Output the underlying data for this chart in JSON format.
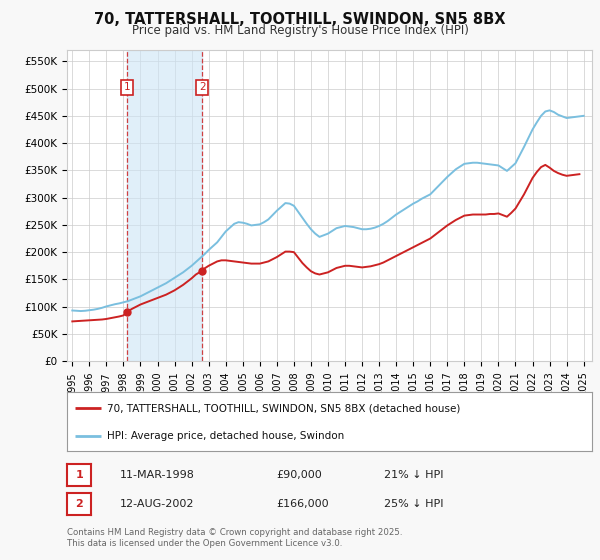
{
  "title": "70, TATTERSHALL, TOOTHILL, SWINDON, SN5 8BX",
  "subtitle": "Price paid vs. HM Land Registry's House Price Index (HPI)",
  "ylabel_ticks": [
    "£0",
    "£50K",
    "£100K",
    "£150K",
    "£200K",
    "£250K",
    "£300K",
    "£350K",
    "£400K",
    "£450K",
    "£500K",
    "£550K"
  ],
  "ytick_values": [
    0,
    50000,
    100000,
    150000,
    200000,
    250000,
    300000,
    350000,
    400000,
    450000,
    500000,
    550000
  ],
  "ylim": [
    0,
    570000
  ],
  "xlim_start": 1994.7,
  "xlim_end": 2025.5,
  "hpi_color": "#7abfdf",
  "price_color": "#cc2222",
  "background_color": "#f8f8f8",
  "plot_bg_color": "#ffffff",
  "grid_color": "#cccccc",
  "sale1_x": 1998.19,
  "sale1_y": 90000,
  "sale2_x": 2002.62,
  "sale2_y": 166000,
  "shade_x1": 1998.19,
  "shade_x2": 2002.62,
  "legend_label_price": "70, TATTERSHALL, TOOTHILL, SWINDON, SN5 8BX (detached house)",
  "legend_label_hpi": "HPI: Average price, detached house, Swindon",
  "table_row1": [
    "1",
    "11-MAR-1998",
    "£90,000",
    "21% ↓ HPI"
  ],
  "table_row2": [
    "2",
    "12-AUG-2002",
    "£166,000",
    "25% ↓ HPI"
  ],
  "footnote": "Contains HM Land Registry data © Crown copyright and database right 2025.\nThis data is licensed under the Open Government Licence v3.0.",
  "hpi_x": [
    1995.0,
    1995.25,
    1995.5,
    1995.75,
    1996.0,
    1996.25,
    1996.5,
    1996.75,
    1997.0,
    1997.25,
    1997.5,
    1997.75,
    1998.0,
    1998.25,
    1998.5,
    1998.75,
    1999.0,
    1999.25,
    1999.5,
    1999.75,
    2000.0,
    2000.25,
    2000.5,
    2000.75,
    2001.0,
    2001.25,
    2001.5,
    2001.75,
    2002.0,
    2002.25,
    2002.5,
    2002.75,
    2003.0,
    2003.25,
    2003.5,
    2003.75,
    2004.0,
    2004.25,
    2004.5,
    2004.75,
    2005.0,
    2005.25,
    2005.5,
    2005.75,
    2006.0,
    2006.25,
    2006.5,
    2006.75,
    2007.0,
    2007.25,
    2007.5,
    2007.75,
    2008.0,
    2008.25,
    2008.5,
    2008.75,
    2009.0,
    2009.25,
    2009.5,
    2009.75,
    2010.0,
    2010.25,
    2010.5,
    2010.75,
    2011.0,
    2011.25,
    2011.5,
    2011.75,
    2012.0,
    2012.25,
    2012.5,
    2012.75,
    2013.0,
    2013.25,
    2013.5,
    2013.75,
    2014.0,
    2014.25,
    2014.5,
    2014.75,
    2015.0,
    2015.25,
    2015.5,
    2015.75,
    2016.0,
    2016.25,
    2016.5,
    2016.75,
    2017.0,
    2017.25,
    2017.5,
    2017.75,
    2018.0,
    2018.25,
    2018.5,
    2018.75,
    2019.0,
    2019.25,
    2019.5,
    2019.75,
    2020.0,
    2020.25,
    2020.5,
    2020.75,
    2021.0,
    2021.25,
    2021.5,
    2021.75,
    2022.0,
    2022.25,
    2022.5,
    2022.75,
    2023.0,
    2023.25,
    2023.5,
    2023.75,
    2024.0,
    2024.25,
    2024.5,
    2024.75,
    2025.0
  ],
  "hpi_y": [
    93000,
    92500,
    92000,
    92500,
    93500,
    94500,
    96000,
    98000,
    100500,
    102500,
    104500,
    106000,
    108000,
    110000,
    113000,
    116000,
    119000,
    123000,
    127000,
    131000,
    135000,
    139000,
    143000,
    148000,
    153000,
    158000,
    163000,
    169000,
    175000,
    182000,
    189000,
    196000,
    204000,
    211000,
    218000,
    228000,
    238000,
    245000,
    252000,
    255000,
    254000,
    252000,
    249000,
    250000,
    251000,
    255000,
    260000,
    268000,
    276000,
    283000,
    290000,
    289000,
    285000,
    274000,
    263000,
    252000,
    242000,
    234000,
    228000,
    231000,
    234000,
    239000,
    244000,
    246000,
    248000,
    247000,
    246000,
    244000,
    242000,
    242000,
    243000,
    245000,
    248000,
    252000,
    257000,
    263000,
    269000,
    274000,
    279000,
    284000,
    289000,
    293000,
    298000,
    302000,
    306000,
    314000,
    322000,
    330000,
    338000,
    345000,
    352000,
    357000,
    362000,
    363000,
    364000,
    364000,
    363000,
    362000,
    361000,
    360000,
    359000,
    354000,
    349000,
    356000,
    363000,
    378000,
    393000,
    409000,
    425000,
    438000,
    450000,
    458000,
    460000,
    457000,
    452000,
    449000,
    446000,
    447000,
    448000,
    449000,
    450000
  ],
  "price_x": [
    1995.0,
    1995.25,
    1995.5,
    1995.75,
    1996.0,
    1996.25,
    1996.5,
    1996.75,
    1997.0,
    1997.25,
    1997.5,
    1997.75,
    1998.0,
    1998.19,
    1998.5,
    1998.75,
    1999.0,
    1999.25,
    1999.5,
    1999.75,
    2000.0,
    2000.25,
    2000.5,
    2000.75,
    2001.0,
    2001.25,
    2001.5,
    2001.75,
    2002.0,
    2002.25,
    2002.62,
    2002.75,
    2003.0,
    2003.25,
    2003.5,
    2003.75,
    2004.0,
    2004.25,
    2004.5,
    2004.75,
    2005.0,
    2005.25,
    2005.5,
    2005.75,
    2006.0,
    2006.25,
    2006.5,
    2006.75,
    2007.0,
    2007.25,
    2007.5,
    2007.75,
    2008.0,
    2008.25,
    2008.5,
    2008.75,
    2009.0,
    2009.25,
    2009.5,
    2009.75,
    2010.0,
    2010.25,
    2010.5,
    2010.75,
    2011.0,
    2011.25,
    2011.5,
    2011.75,
    2012.0,
    2012.25,
    2012.5,
    2012.75,
    2013.0,
    2013.25,
    2013.5,
    2013.75,
    2014.0,
    2014.25,
    2014.5,
    2014.75,
    2015.0,
    2015.25,
    2015.5,
    2015.75,
    2016.0,
    2016.25,
    2016.5,
    2016.75,
    2017.0,
    2017.25,
    2017.5,
    2017.75,
    2018.0,
    2018.25,
    2018.5,
    2018.75,
    2019.0,
    2019.25,
    2019.5,
    2019.75,
    2020.0,
    2020.25,
    2020.5,
    2020.75,
    2021.0,
    2021.25,
    2021.5,
    2021.75,
    2022.0,
    2022.25,
    2022.5,
    2022.75,
    2023.0,
    2023.25,
    2023.5,
    2023.75,
    2024.0,
    2024.25,
    2024.5,
    2024.75
  ],
  "price_y": [
    73000,
    73500,
    74000,
    74500,
    75000,
    75500,
    76000,
    76500,
    77500,
    79000,
    80500,
    82000,
    84000,
    90000,
    96000,
    100000,
    104000,
    107000,
    110000,
    113000,
    116000,
    119000,
    122000,
    126000,
    130000,
    135000,
    140000,
    146000,
    152000,
    159000,
    166000,
    170000,
    175000,
    179000,
    183000,
    185000,
    185000,
    184000,
    183000,
    182000,
    181000,
    180000,
    179000,
    179000,
    179000,
    181000,
    183000,
    187000,
    191000,
    196000,
    201000,
    201000,
    200000,
    190000,
    180000,
    172000,
    165000,
    161000,
    159000,
    161000,
    163000,
    167000,
    171000,
    173000,
    175000,
    175000,
    174000,
    173000,
    172000,
    173000,
    174000,
    176000,
    178000,
    181000,
    185000,
    189000,
    193000,
    197000,
    201000,
    205000,
    209000,
    213000,
    217000,
    221000,
    225000,
    231000,
    237000,
    243000,
    249000,
    254000,
    259000,
    263000,
    267000,
    268000,
    269000,
    269000,
    269000,
    269000,
    270000,
    270000,
    271000,
    268000,
    265000,
    272000,
    280000,
    293000,
    306000,
    321000,
    336000,
    347000,
    356000,
    360000,
    355000,
    349000,
    345000,
    342000,
    340000,
    341000,
    342000,
    343000
  ]
}
